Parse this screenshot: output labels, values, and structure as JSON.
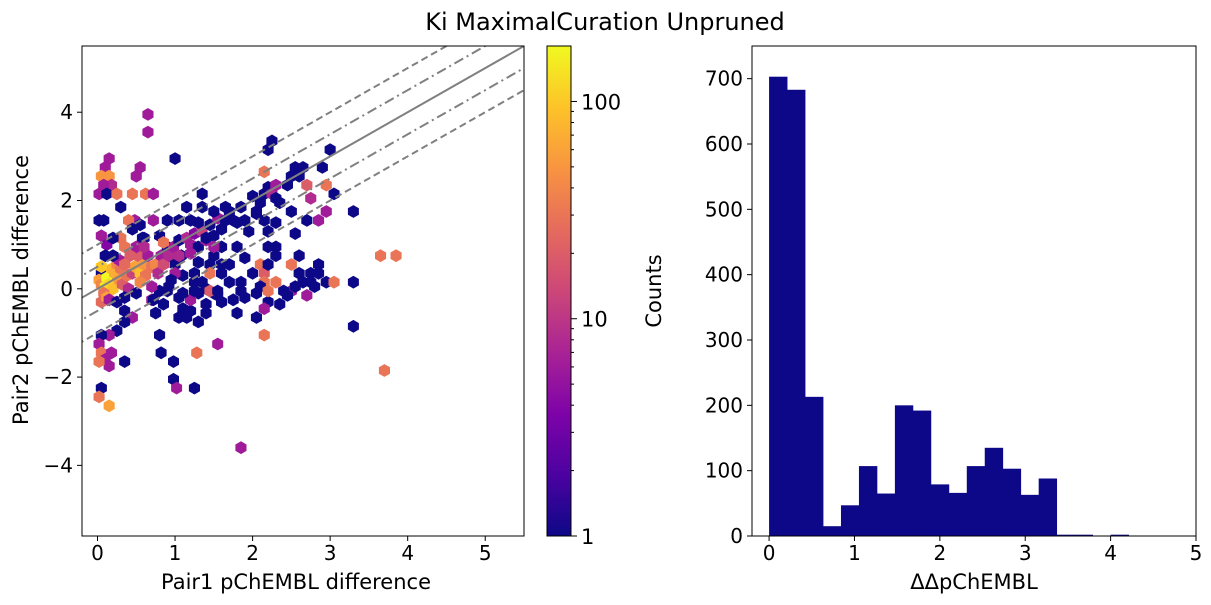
{
  "suptitle": "Ki MaximalCuration Unpruned",
  "chart_data": [
    {
      "type": "hexbin",
      "xlabel": "Pair1 pChEMBL difference",
      "ylabel": "Pair2 pChEMBL difference",
      "xlim": [
        -0.2,
        5.5
      ],
      "ylim": [
        -5.6,
        5.5
      ],
      "xticks": [
        "0",
        "1",
        "2",
        "3",
        "4",
        "5"
      ],
      "yticks": [
        "−4",
        "−2",
        "0",
        "2",
        "4"
      ],
      "ytick_values": [
        -4,
        -2,
        0,
        2,
        4
      ],
      "colorbar": {
        "label": "Counts",
        "scale": "log",
        "range": [
          1,
          180
        ],
        "ticks": [
          "1",
          "10",
          "100"
        ],
        "tick_values": [
          1,
          10,
          100
        ],
        "colormap": "plasma"
      },
      "reference_lines": [
        {
          "style": "solid",
          "color": "#808080",
          "slope": 1,
          "intercept": 0
        },
        {
          "style": "dashdot",
          "color": "#808080",
          "slope": 1,
          "intercept": 0.5
        },
        {
          "style": "dashdot",
          "color": "#808080",
          "slope": 1,
          "intercept": -0.5
        },
        {
          "style": "dashed",
          "color": "#808080",
          "slope": 1,
          "intercept": 1
        },
        {
          "style": "dashed",
          "color": "#808080",
          "slope": 1,
          "intercept": -1
        }
      ],
      "points": [
        [
          0.02,
          1.55,
          1
        ],
        [
          0.05,
          1.2,
          6
        ],
        [
          0.08,
          1.55,
          1
        ],
        [
          0.12,
          1.0,
          4
        ],
        [
          0.1,
          0.75,
          1
        ],
        [
          0.05,
          0.35,
          1
        ],
        [
          0.15,
          0.3,
          1
        ],
        [
          0.02,
          0.2,
          60
        ],
        [
          0.05,
          0.1,
          40
        ],
        [
          0.1,
          0.05,
          150
        ],
        [
          0.12,
          0.25,
          180
        ],
        [
          0.15,
          0.1,
          120
        ],
        [
          0.2,
          0.0,
          90
        ],
        [
          0.08,
          -0.1,
          30
        ],
        [
          0.05,
          -0.3,
          25
        ],
        [
          0.12,
          -0.2,
          60
        ],
        [
          0.18,
          0.45,
          80
        ],
        [
          0.22,
          0.35,
          70
        ],
        [
          0.25,
          0.55,
          40
        ],
        [
          0.28,
          0.2,
          50
        ],
        [
          0.3,
          0.45,
          30
        ],
        [
          0.32,
          0.1,
          20
        ],
        [
          0.38,
          0.3,
          30
        ],
        [
          0.4,
          0.0,
          8
        ],
        [
          0.45,
          0.35,
          12
        ],
        [
          0.48,
          0.5,
          60
        ],
        [
          0.52,
          0.75,
          20
        ],
        [
          0.55,
          0.35,
          90
        ],
        [
          0.6,
          0.55,
          50
        ],
        [
          0.62,
          0.3,
          30
        ],
        [
          0.65,
          0.75,
          6
        ],
        [
          0.7,
          0.5,
          30
        ],
        [
          0.75,
          0.55,
          40
        ],
        [
          0.78,
          0.35,
          8
        ],
        [
          0.82,
          0.75,
          6
        ],
        [
          0.85,
          0.55,
          15
        ],
        [
          0.9,
          0.95,
          1
        ],
        [
          0.92,
          0.75,
          8
        ],
        [
          0.98,
          0.95,
          6
        ],
        [
          1.0,
          0.55,
          1
        ],
        [
          1.05,
          1.1,
          1
        ],
        [
          1.08,
          0.75,
          1
        ],
        [
          1.15,
          1.15,
          8
        ],
        [
          1.2,
          1.0,
          6
        ],
        [
          1.25,
          1.25,
          4
        ],
        [
          1.3,
          0.95,
          1
        ],
        [
          1.35,
          1.3,
          12
        ],
        [
          1.4,
          1.1,
          6
        ],
        [
          1.45,
          1.45,
          1
        ],
        [
          1.5,
          1.2,
          1
        ],
        [
          1.55,
          1.6,
          6
        ],
        [
          1.6,
          1.35,
          1
        ],
        [
          1.65,
          1.55,
          1
        ],
        [
          1.7,
          1.75,
          1
        ],
        [
          1.75,
          1.55,
          1
        ],
        [
          1.85,
          1.85,
          1
        ],
        [
          1.9,
          1.55,
          1
        ],
        [
          2.0,
          2.1,
          1
        ],
        [
          2.05,
          1.7,
          1
        ],
        [
          2.1,
          1.95,
          1
        ],
        [
          2.15,
          2.15,
          1
        ],
        [
          2.2,
          2.3,
          1
        ],
        [
          2.25,
          2.15,
          8
        ],
        [
          2.3,
          2.35,
          6
        ],
        [
          2.35,
          1.95,
          1
        ],
        [
          0.15,
          2.95,
          6
        ],
        [
          0.1,
          2.75,
          6
        ],
        [
          0.05,
          2.55,
          50
        ],
        [
          0.15,
          2.55,
          50
        ],
        [
          0.18,
          2.35,
          8
        ],
        [
          0.08,
          2.35,
          6
        ],
        [
          0.02,
          2.15,
          6
        ],
        [
          0.12,
          2.15,
          1
        ],
        [
          0.25,
          2.15,
          30
        ],
        [
          0.3,
          1.85,
          1
        ],
        [
          0.45,
          2.15,
          30
        ],
        [
          0.48,
          1.55,
          6
        ],
        [
          0.4,
          1.55,
          30
        ],
        [
          0.3,
          1.15,
          30
        ],
        [
          0.2,
          1.15,
          1
        ],
        [
          0.35,
          0.95,
          30
        ],
        [
          0.5,
          2.55,
          6
        ],
        [
          0.55,
          2.75,
          6
        ],
        [
          0.62,
          2.15,
          30
        ],
        [
          0.72,
          2.15,
          6
        ],
        [
          0.65,
          3.55,
          6
        ],
        [
          0.65,
          3.95,
          6
        ],
        [
          0.58,
          1.15,
          1
        ],
        [
          0.72,
          1.55,
          6
        ],
        [
          0.8,
          1.2,
          1
        ],
        [
          0.9,
          1.55,
          1
        ],
        [
          1.05,
          1.55,
          1
        ],
        [
          1.0,
          2.95,
          1
        ],
        [
          1.15,
          1.85,
          1
        ],
        [
          1.35,
          1.85,
          1
        ],
        [
          1.3,
          1.5,
          1
        ],
        [
          1.5,
          1.75,
          1
        ],
        [
          1.4,
          1.15,
          1
        ],
        [
          1.2,
          1.55,
          1
        ],
        [
          1.35,
          2.15,
          1
        ],
        [
          1.65,
          1.85,
          1
        ],
        [
          1.8,
          1.5,
          1
        ],
        [
          2.05,
          1.75,
          1
        ],
        [
          2.15,
          1.55,
          1
        ],
        [
          2.2,
          1.3,
          1
        ],
        [
          2.3,
          1.5,
          1
        ],
        [
          1.95,
          1.3,
          1
        ],
        [
          2.15,
          2.65,
          30
        ],
        [
          2.2,
          3.15,
          1
        ],
        [
          2.25,
          3.35,
          1
        ],
        [
          2.3,
          2.05,
          1
        ],
        [
          2.45,
          2.35,
          1
        ],
        [
          2.5,
          2.55,
          1
        ],
        [
          2.55,
          2.75,
          1
        ],
        [
          2.6,
          2.55,
          1
        ],
        [
          2.65,
          2.75,
          1
        ],
        [
          2.7,
          2.35,
          20
        ],
        [
          2.75,
          2.05,
          8
        ],
        [
          2.9,
          2.75,
          1
        ],
        [
          2.95,
          2.35,
          30
        ],
        [
          3.0,
          3.15,
          1
        ],
        [
          2.85,
          1.55,
          6
        ],
        [
          2.95,
          1.75,
          6
        ],
        [
          3.05,
          2.15,
          1
        ],
        [
          3.3,
          1.75,
          1
        ],
        [
          2.5,
          1.75,
          1
        ],
        [
          2.7,
          1.55,
          1
        ],
        [
          2.3,
          0.95,
          1
        ],
        [
          2.55,
          1.25,
          1
        ],
        [
          1.6,
          0.95,
          1
        ],
        [
          1.8,
          0.95,
          1
        ],
        [
          1.5,
          0.75,
          1
        ],
        [
          1.9,
          0.7,
          1
        ],
        [
          2.0,
          0.35,
          1
        ],
        [
          1.7,
          0.55,
          1
        ],
        [
          1.45,
          0.55,
          1
        ],
        [
          1.25,
          0.35,
          1
        ],
        [
          1.1,
          0.3,
          1
        ],
        [
          1.0,
          0.35,
          6
        ],
        [
          0.95,
          0.2,
          1
        ],
        [
          0.92,
          0.05,
          1
        ],
        [
          1.05,
          -0.2,
          1
        ],
        [
          1.1,
          -0.45,
          1
        ],
        [
          1.15,
          -0.65,
          1
        ],
        [
          1.05,
          -0.65,
          1
        ],
        [
          1.2,
          -0.5,
          1
        ],
        [
          0.9,
          -0.05,
          1
        ],
        [
          0.85,
          -0.35,
          1
        ],
        [
          0.7,
          -0.25,
          6
        ],
        [
          0.8,
          -0.05,
          1
        ],
        [
          0.7,
          0.05,
          6
        ],
        [
          0.5,
          -0.1,
          1
        ],
        [
          0.35,
          -0.2,
          1
        ],
        [
          0.15,
          -0.25,
          6
        ],
        [
          0.25,
          -0.3,
          1
        ],
        [
          0.35,
          -0.5,
          1
        ],
        [
          0.72,
          -0.25,
          1
        ],
        [
          1.25,
          0.15,
          1
        ],
        [
          1.35,
          0.15,
          1
        ],
        [
          1.4,
          0.0,
          1
        ],
        [
          1.5,
          -0.1,
          1
        ],
        [
          1.55,
          -0.15,
          1
        ],
        [
          1.6,
          -0.3,
          1
        ],
        [
          1.45,
          0.35,
          30
        ],
        [
          1.4,
          -0.35,
          1
        ],
        [
          1.3,
          -0.1,
          1
        ],
        [
          1.6,
          0.35,
          1
        ],
        [
          1.7,
          0.15,
          1
        ],
        [
          1.85,
          0.15,
          1
        ],
        [
          2.1,
          0.55,
          30
        ],
        [
          2.15,
          0.35,
          20
        ],
        [
          2.2,
          0.55,
          1
        ],
        [
          2.3,
          0.15,
          30
        ],
        [
          2.15,
          0.15,
          30
        ],
        [
          2.5,
          0.55,
          30
        ],
        [
          2.6,
          0.35,
          1
        ],
        [
          2.65,
          0.15,
          1
        ],
        [
          2.75,
          0.15,
          1
        ],
        [
          2.85,
          0.55,
          1
        ],
        [
          2.95,
          0.15,
          1
        ],
        [
          2.5,
          -0.05,
          6
        ],
        [
          2.4,
          -0.05,
          1
        ],
        [
          2.75,
          0.35,
          1
        ],
        [
          2.85,
          0.35,
          1
        ],
        [
          2.6,
          0.75,
          1
        ],
        [
          2.3,
          0.75,
          1
        ],
        [
          2.2,
          0.95,
          1
        ],
        [
          2.1,
          0.05,
          1
        ],
        [
          2.05,
          -0.1,
          1
        ],
        [
          2.2,
          -0.3,
          1
        ],
        [
          1.9,
          -0.2,
          1
        ],
        [
          1.85,
          -0.05,
          1
        ],
        [
          1.75,
          -0.25,
          1
        ],
        [
          1.6,
          0.55,
          1
        ],
        [
          1.45,
          -0.05,
          20
        ],
        [
          2.35,
          -0.35,
          1
        ],
        [
          2.45,
          -0.15,
          1
        ],
        [
          2.7,
          -0.15,
          6
        ],
        [
          2.8,
          0.05,
          1
        ],
        [
          2.55,
          0.05,
          1
        ],
        [
          2.15,
          -1.05,
          30
        ],
        [
          2.05,
          -0.65,
          1
        ],
        [
          2.15,
          -0.45,
          6
        ],
        [
          2.2,
          -0.05,
          30
        ],
        [
          1.55,
          -0.05,
          1
        ],
        [
          1.8,
          -0.55,
          1
        ],
        [
          1.4,
          -0.55,
          1
        ],
        [
          1.3,
          -0.75,
          1
        ],
        [
          1.2,
          -0.25,
          6
        ],
        [
          1.25,
          -0.05,
          1
        ],
        [
          1.1,
          -0.1,
          1
        ],
        [
          0.75,
          -0.55,
          1
        ],
        [
          0.45,
          -0.65,
          6
        ],
        [
          0.35,
          -0.75,
          1
        ],
        [
          0.25,
          -0.95,
          1
        ],
        [
          0.15,
          -1.05,
          6
        ],
        [
          0.05,
          -1.05,
          1
        ],
        [
          0.02,
          -1.25,
          6
        ],
        [
          0.05,
          -1.45,
          30
        ],
        [
          0.1,
          -1.6,
          6
        ],
        [
          0.15,
          -1.75,
          6
        ],
        [
          0.18,
          -1.45,
          6
        ],
        [
          0.02,
          -1.65,
          30
        ],
        [
          0.05,
          -2.25,
          1
        ],
        [
          0.02,
          -2.45,
          30
        ],
        [
          0.15,
          -2.65,
          60
        ],
        [
          0.35,
          -1.65,
          1
        ],
        [
          0.8,
          -1.05,
          1
        ],
        [
          0.82,
          -1.45,
          1
        ],
        [
          0.98,
          -1.65,
          1
        ],
        [
          0.98,
          -2.05,
          1
        ],
        [
          1.02,
          -2.25,
          6
        ],
        [
          1.25,
          -2.25,
          1
        ],
        [
          1.28,
          -1.45,
          30
        ],
        [
          1.55,
          -1.25,
          6
        ],
        [
          1.85,
          -3.6,
          6
        ],
        [
          3.3,
          0.15,
          1
        ],
        [
          3.3,
          -0.85,
          1
        ],
        [
          3.05,
          0.15,
          30
        ],
        [
          3.65,
          0.75,
          30
        ],
        [
          3.85,
          0.75,
          30
        ],
        [
          3.7,
          -1.85,
          30
        ],
        [
          0.5,
          0.95,
          6
        ],
        [
          0.6,
          1.15,
          1
        ],
        [
          0.45,
          1.35,
          1
        ],
        [
          0.55,
          1.45,
          1
        ],
        [
          0.28,
          0.65,
          6
        ],
        [
          0.2,
          0.75,
          1
        ],
        [
          0.85,
          1.05,
          30
        ],
        [
          1.05,
          0.75,
          8
        ],
        [
          1.2,
          0.8,
          6
        ],
        [
          1.3,
          0.6,
          1
        ],
        [
          1.5,
          0.95,
          6
        ],
        [
          0.55,
          0.15,
          40
        ],
        [
          0.42,
          0.75,
          20
        ],
        [
          0.6,
          0.95,
          8
        ],
        [
          0.35,
          0.55,
          25
        ],
        [
          0.05,
          0.5,
          100
        ]
      ]
    },
    {
      "type": "histogram",
      "xlabel": "ΔΔpChEMBL",
      "ylabel": "",
      "xlim": [
        -0.2,
        5.0
      ],
      "ylim": [
        0,
        750
      ],
      "xticks": [
        "0",
        "1",
        "2",
        "3",
        "4",
        "5"
      ],
      "yticks": [
        "0",
        "100",
        "200",
        "300",
        "400",
        "500",
        "600",
        "700"
      ],
      "ytick_values": [
        0,
        100,
        200,
        300,
        400,
        500,
        600,
        700
      ],
      "color": "#0d0887",
      "bin_edges": [
        0.0,
        0.2105,
        0.421,
        0.6315,
        0.842,
        1.0525,
        1.263,
        1.4735,
        1.684,
        1.8945,
        2.105,
        2.3155,
        2.526,
        2.7365,
        2.947,
        3.1575,
        3.368,
        3.5785,
        3.789,
        4.0,
        4.2105
      ],
      "counts": [
        703,
        683,
        213,
        15,
        47,
        107,
        65,
        200,
        192,
        79,
        66,
        107,
        135,
        103,
        63,
        88,
        2,
        2,
        0,
        2
      ]
    }
  ]
}
